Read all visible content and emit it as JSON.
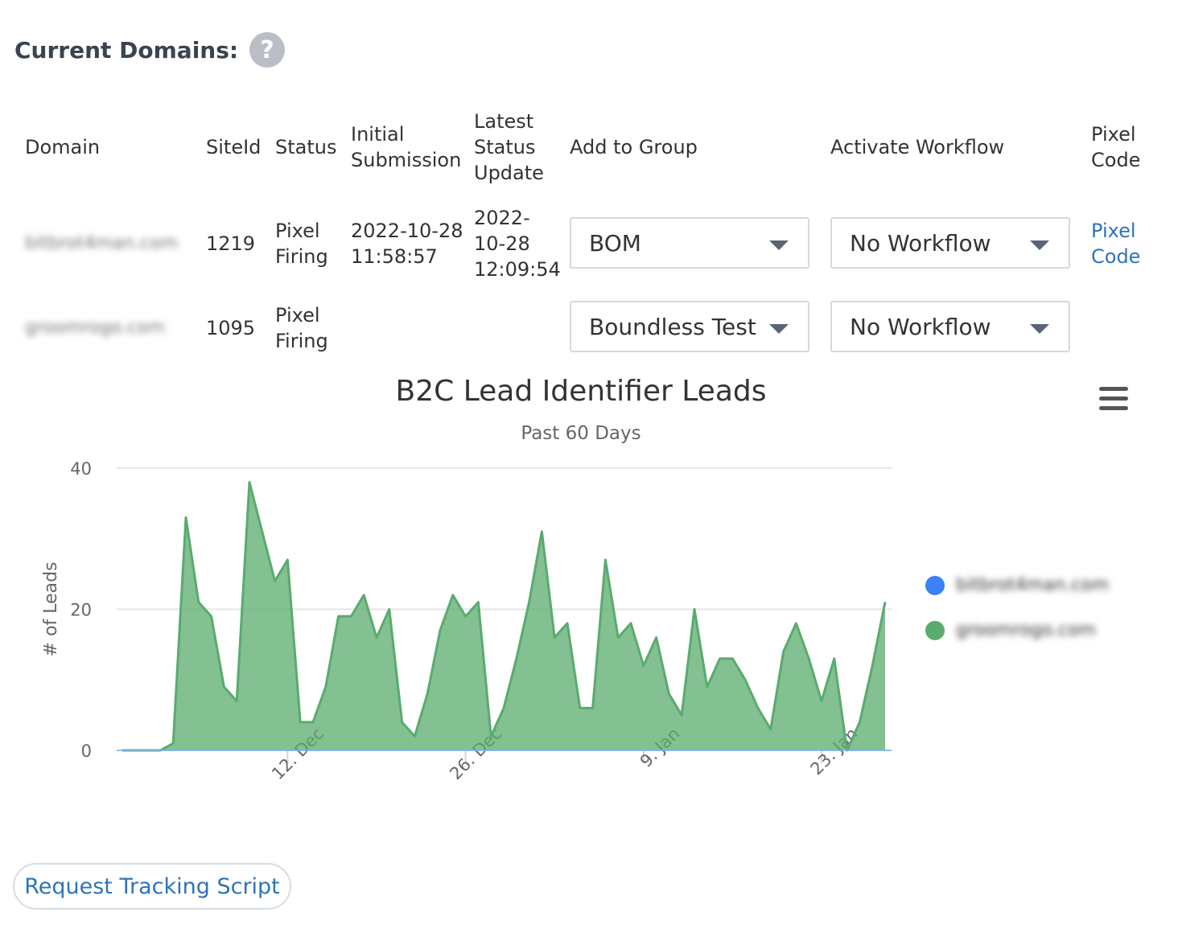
{
  "heading": {
    "title": "Current Domains:",
    "help_icon": "question-circle-icon",
    "help_glyph": "?"
  },
  "table": {
    "headers": {
      "domain": "Domain",
      "siteid": "SiteId",
      "status": "Status",
      "initial_submission": [
        "Initial",
        "Submission"
      ],
      "latest_status_update": [
        "Latest",
        "Status",
        "Update"
      ],
      "add_to_group": "Add to Group",
      "activate_workflow": "Activate Workflow",
      "pixel_code": [
        "Pixel",
        "Code"
      ]
    },
    "rows": [
      {
        "domain": "bitbrot4man.com",
        "siteid": "1219",
        "status": [
          "Pixel",
          "Firing"
        ],
        "initial_submission": [
          "2022-10-28",
          "11:58:57"
        ],
        "latest_status_update": [
          "2022-",
          "10-28",
          "12:09:54"
        ],
        "group": "BOM",
        "workflow": "No Workflow",
        "pixel_code": [
          "Pixel",
          "Code"
        ]
      },
      {
        "domain": "groomrogo.com",
        "siteid": "1095",
        "status": [
          "Pixel",
          "Firing"
        ],
        "initial_submission": [
          "",
          ""
        ],
        "latest_status_update": [
          "",
          "",
          ""
        ],
        "group": "Boundless Test",
        "workflow": "No Workflow",
        "pixel_code": [
          "",
          ""
        ]
      }
    ]
  },
  "chart": {
    "menu_icon": "hamburger-menu-icon"
  },
  "chart_data": {
    "type": "area",
    "title": "B2C Lead Identifier Leads",
    "subtitle": "Past 60 Days",
    "xlabel": "",
    "ylabel": "# of Leads",
    "ylim": [
      0,
      40
    ],
    "yticks": [
      0,
      20,
      40
    ],
    "x_start": "2022-11-29",
    "x_step_days": 1,
    "xtick_labels": [
      "12. Dec",
      "26. Dec",
      "9. Jan",
      "23. Jan"
    ],
    "xtick_dates": [
      "2022-12-12",
      "2022-12-26",
      "2023-01-09",
      "2023-01-23"
    ],
    "grid": true,
    "legend_position": "right",
    "series": [
      {
        "name": "bitbrot4man.com",
        "color": "#3b82f6",
        "values": []
      },
      {
        "name": "groomrogo.com",
        "color": "#5aab6e",
        "values": [
          0,
          0,
          0,
          0,
          1,
          33,
          21,
          19,
          9,
          7,
          38,
          31,
          24,
          27,
          4,
          4,
          9,
          19,
          19,
          22,
          16,
          20,
          4,
          2,
          8,
          17,
          22,
          19,
          21,
          2,
          6,
          13,
          21,
          31,
          16,
          18,
          6,
          6,
          27,
          16,
          18,
          12,
          16,
          8,
          5,
          20,
          9,
          13,
          13,
          10,
          6,
          3,
          14,
          18,
          13,
          7,
          13,
          0,
          4,
          12,
          21
        ]
      }
    ]
  },
  "footer": {
    "request_button": "Request Tracking Script"
  }
}
